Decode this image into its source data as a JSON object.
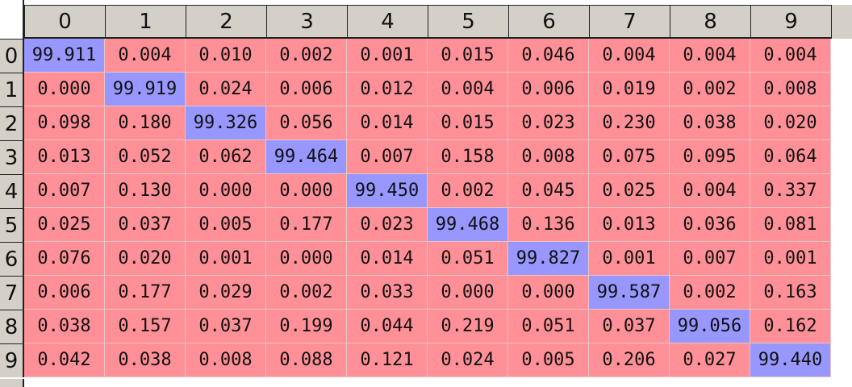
{
  "colors": {
    "off_diagonal": "#ff9097",
    "diagonal": "#9797ff",
    "header": "#d4d0c8"
  },
  "columns": [
    "0",
    "1",
    "2",
    "3",
    "4",
    "5",
    "6",
    "7",
    "8",
    "9"
  ],
  "rows": [
    {
      "label": "0",
      "cells": [
        "99.911",
        "0.004",
        "0.010",
        "0.002",
        "0.001",
        "0.015",
        "0.046",
        "0.004",
        "0.004",
        "0.004"
      ]
    },
    {
      "label": "1",
      "cells": [
        "0.000",
        "99.919",
        "0.024",
        "0.006",
        "0.012",
        "0.004",
        "0.006",
        "0.019",
        "0.002",
        "0.008"
      ]
    },
    {
      "label": "2",
      "cells": [
        "0.098",
        "0.180",
        "99.326",
        "0.056",
        "0.014",
        "0.015",
        "0.023",
        "0.230",
        "0.038",
        "0.020"
      ]
    },
    {
      "label": "3",
      "cells": [
        "0.013",
        "0.052",
        "0.062",
        "99.464",
        "0.007",
        "0.158",
        "0.008",
        "0.075",
        "0.095",
        "0.064"
      ]
    },
    {
      "label": "4",
      "cells": [
        "0.007",
        "0.130",
        "0.000",
        "0.000",
        "99.450",
        "0.002",
        "0.045",
        "0.025",
        "0.004",
        "0.337"
      ]
    },
    {
      "label": "5",
      "cells": [
        "0.025",
        "0.037",
        "0.005",
        "0.177",
        "0.023",
        "99.468",
        "0.136",
        "0.013",
        "0.036",
        "0.081"
      ]
    },
    {
      "label": "6",
      "cells": [
        "0.076",
        "0.020",
        "0.001",
        "0.000",
        "0.014",
        "0.051",
        "99.827",
        "0.001",
        "0.007",
        "0.001"
      ]
    },
    {
      "label": "7",
      "cells": [
        "0.006",
        "0.177",
        "0.029",
        "0.002",
        "0.033",
        "0.000",
        "0.000",
        "99.587",
        "0.002",
        "0.163"
      ]
    },
    {
      "label": "8",
      "cells": [
        "0.038",
        "0.157",
        "0.037",
        "0.199",
        "0.044",
        "0.219",
        "0.051",
        "0.037",
        "99.056",
        "0.162"
      ]
    },
    {
      "label": "9",
      "cells": [
        "0.042",
        "0.038",
        "0.008",
        "0.088",
        "0.121",
        "0.024",
        "0.005",
        "0.206",
        "0.027",
        "99.440"
      ]
    }
  ]
}
